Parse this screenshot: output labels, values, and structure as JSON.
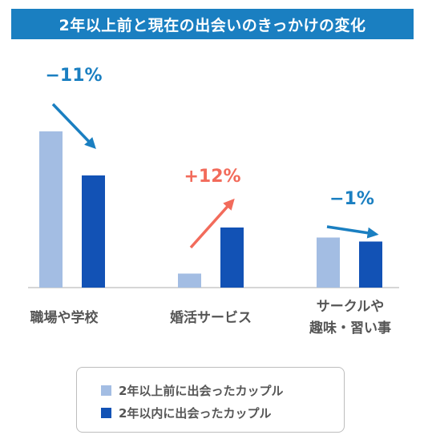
{
  "title": "2年以上前と現在の出会いのきっかけの変化",
  "chart_data": {
    "type": "bar",
    "categories": [
      "職場や学校",
      "婚活サービス",
      "サークルや\n趣味・習い事"
    ],
    "series": [
      {
        "name": "2年以上前に出会ったカップル",
        "color": "#a3bde3",
        "values": [
          39,
          3.5,
          12.5
        ]
      },
      {
        "name": "2年以内に出会ったカップル",
        "color": "#1252b5",
        "values": [
          28,
          15,
          11.5
        ]
      }
    ],
    "changes": [
      {
        "label": "−11%",
        "color": "#1a7fc1",
        "direction": "down"
      },
      {
        "label": "+12%",
        "color": "#f26b5b",
        "direction": "up"
      },
      {
        "label": "−1%",
        "color": "#1a7fc1",
        "direction": "down"
      }
    ],
    "ylim": [
      0,
      40
    ],
    "legend_position": "bottom"
  }
}
